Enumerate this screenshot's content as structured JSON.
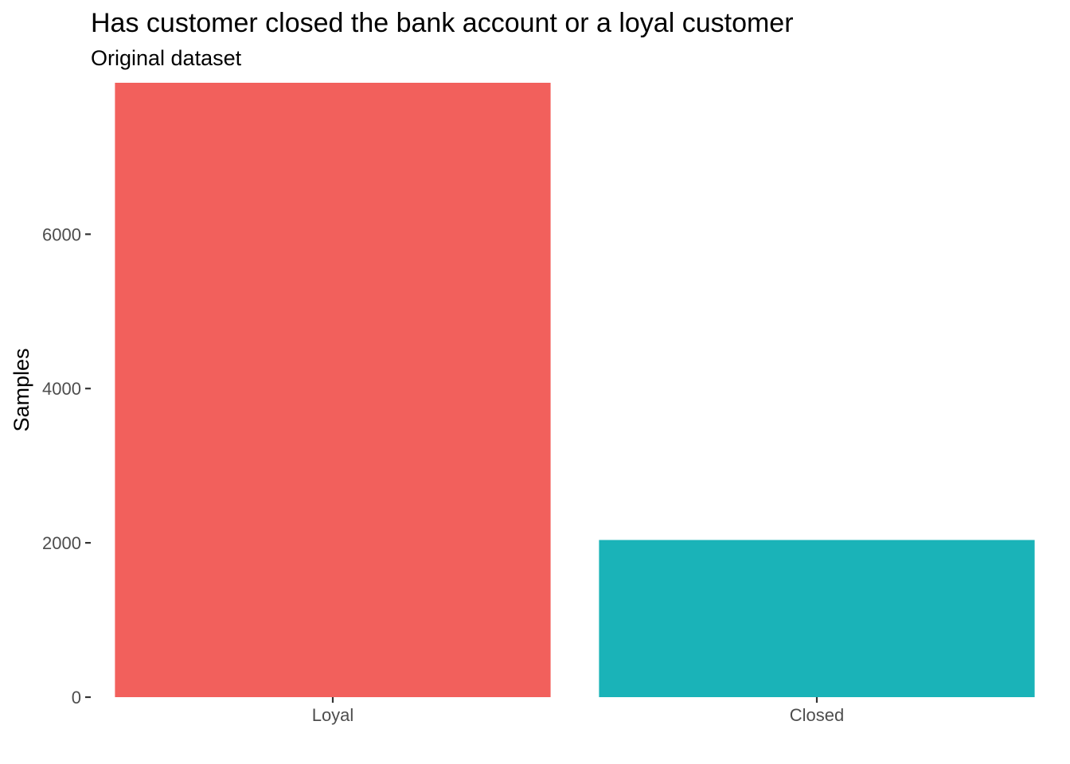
{
  "chart_data": {
    "type": "bar",
    "title": "Has customer closed the bank account or a loyal customer",
    "subtitle": "Original dataset",
    "xlabel": "",
    "ylabel": "Samples",
    "categories": [
      "Loyal",
      "Closed"
    ],
    "values": [
      7963,
      2037
    ],
    "colors": [
      "#F2605C",
      "#1AB3B8"
    ],
    "ylim": [
      0,
      7963
    ],
    "yticks": [
      0,
      2000,
      4000,
      6000
    ],
    "ytick_labels": [
      "0",
      "2000",
      "4000",
      "6000"
    ],
    "grid": false,
    "legend": "none"
  }
}
